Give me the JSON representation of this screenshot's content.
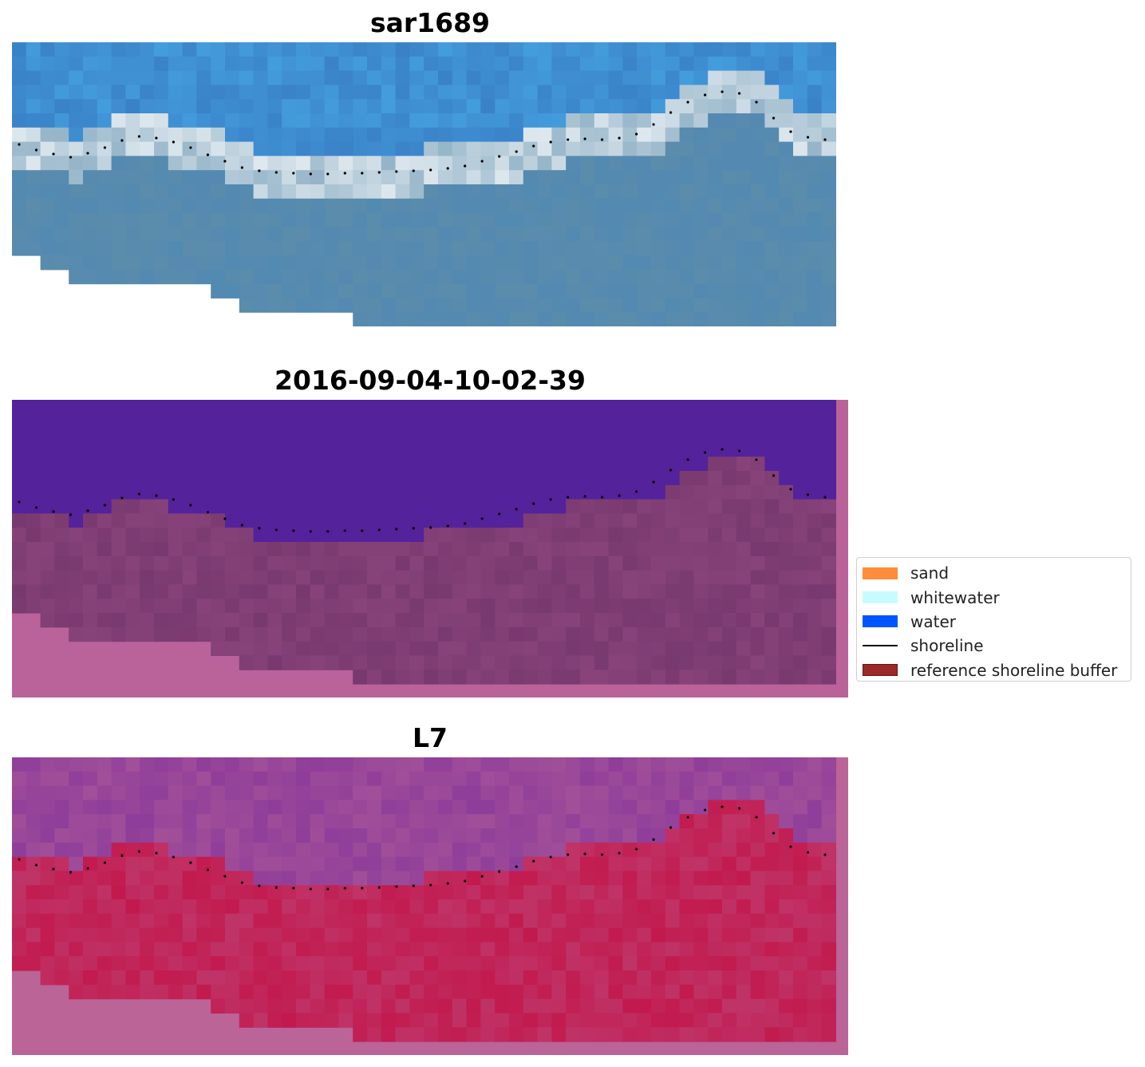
{
  "chart_data": [
    {
      "type": "image",
      "title": "sar1689",
      "panel": "rgb",
      "colors": {
        "water_light": "#4aaee8",
        "water": "#3a82c8",
        "surf": "#ffffff",
        "land": "#5b8cab"
      }
    },
    {
      "type": "image",
      "title": "2016-09-04-10-02-39",
      "panel": "classification",
      "colors": {
        "water": "#54229a",
        "sand": "#77396f",
        "edge": "#b9639a"
      }
    },
    {
      "type": "image",
      "title": "L7",
      "panel": "mndwi",
      "colors": {
        "water": "#8e3e9a",
        "land": "#c21a4e",
        "edge": "#ba6497"
      }
    }
  ],
  "legend": {
    "items": [
      {
        "label": "sand",
        "kind": "patch",
        "color": "#ff8c3a"
      },
      {
        "label": "whitewater",
        "kind": "patch",
        "color": "#c8fcfc"
      },
      {
        "label": "water",
        "kind": "patch",
        "color": "#0055ff"
      },
      {
        "label": "shoreline",
        "kind": "line",
        "color": "#000000"
      },
      {
        "label": "reference shoreline buffer",
        "kind": "patch",
        "color": "#9a2a2a"
      }
    ]
  }
}
